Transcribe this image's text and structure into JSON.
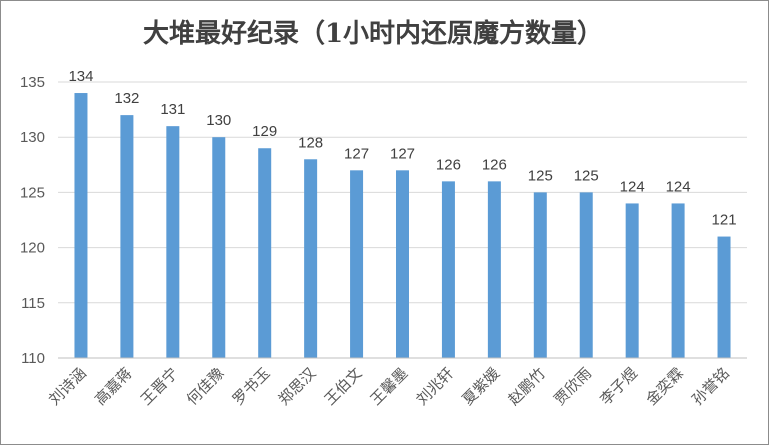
{
  "chart_data": {
    "type": "bar",
    "title": "大堆最好纪录（1小时内还原魔方数量）",
    "categories": [
      "刘诗涵",
      "高嘉蒋",
      "王晋宁",
      "何佳豫",
      "罗书玉",
      "郑思汉",
      "王伯文",
      "王馨墨",
      "刘兆轩",
      "夏紫媛",
      "赵鹏竹",
      "贾欣雨",
      "李子煜",
      "金奕霖",
      "孙誉铭"
    ],
    "values": [
      134,
      132,
      131,
      130,
      129,
      128,
      127,
      127,
      126,
      126,
      125,
      125,
      124,
      124,
      121
    ],
    "xlabel": "",
    "ylabel": "",
    "ylim": [
      110,
      135
    ],
    "yticks": [
      110,
      115,
      120,
      125,
      130,
      135
    ],
    "grid": true,
    "data_labels": true,
    "legend": "none",
    "bar_color": "#5b9bd5",
    "grid_color": "#d9d9d9",
    "axis_color": "#bfbfbf",
    "title_color": "#404040",
    "label_color": "#595959"
  }
}
